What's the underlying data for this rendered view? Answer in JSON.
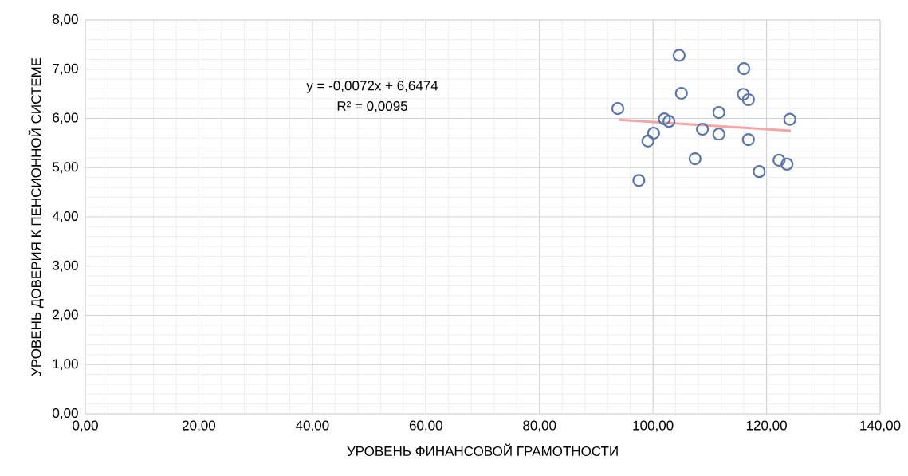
{
  "chart_data": {
    "type": "scatter",
    "xlabel": "УРОВЕНЬ ФИНАНСОВОЙ ГРАМОТНОСТИ",
    "ylabel": "УРОВЕНЬ ДОВЕРИЯ К ПЕНСИОННОЙ СИСТЕМЕ",
    "series": [
      {
        "color": "#5a74a8",
        "marker": "circle",
        "x": [
          93.8,
          104.6,
          116.0,
          105.0,
          115.9,
          116.8,
          111.6,
          102.0,
          102.8,
          124.1,
          100.1,
          99.1,
          108.7,
          111.6,
          116.8,
          107.4,
          122.2,
          123.6,
          118.7,
          97.5
        ],
        "values": [
          6.2,
          7.28,
          7.01,
          6.51,
          6.49,
          6.38,
          6.12,
          5.99,
          5.94,
          5.98,
          5.7,
          5.54,
          5.78,
          5.68,
          5.57,
          5.18,
          5.15,
          5.07,
          4.92,
          4.74
        ]
      },
      {
        "type": "line",
        "color": "#f4a6a6",
        "x": [
          94.0,
          124.3
        ],
        "values": [
          5.97,
          5.75
        ]
      }
    ],
    "xlim": [
      0,
      140
    ],
    "ylim": [
      0,
      8
    ],
    "xticks": [
      {
        "value": 0,
        "label": "0,00"
      },
      {
        "value": 20,
        "label": "20,00"
      },
      {
        "value": 40,
        "label": "40,00"
      },
      {
        "value": 60,
        "label": "60,00"
      },
      {
        "value": 80,
        "label": "80,00"
      },
      {
        "value": 100,
        "label": "100,00"
      },
      {
        "value": 120,
        "label": "120,00"
      },
      {
        "value": 140,
        "label": "140,00"
      }
    ],
    "yticks": [
      {
        "value": 0,
        "label": "0,00"
      },
      {
        "value": 1,
        "label": "1,00"
      },
      {
        "value": 2,
        "label": "2,00"
      },
      {
        "value": 3,
        "label": "3,00"
      },
      {
        "value": 4,
        "label": "4,00"
      },
      {
        "value": 5,
        "label": "5,00"
      },
      {
        "value": 6,
        "label": "6,00"
      },
      {
        "value": 7,
        "label": "7,00"
      },
      {
        "value": 8,
        "label": "8,00"
      }
    ],
    "grid": true,
    "annotations": [
      "y = -0,0072x + 6,6474",
      "R² = 0,0095"
    ]
  }
}
